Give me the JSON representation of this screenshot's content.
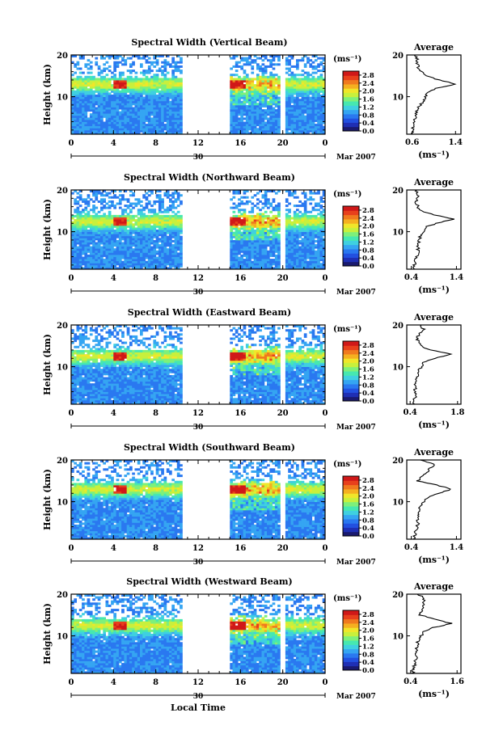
{
  "figure": {
    "xlabel": "Local Time",
    "date_label": "Mar 2007",
    "day_label": "30",
    "colorbar_unit": "(ms⁻¹)",
    "avg_title": "Average",
    "avg_xlabel": "(ms⁻¹)",
    "ylabel": "Height (km)"
  },
  "chart_data": [
    {
      "type": "heatmap",
      "title": "Spectral Width (Vertical Beam)",
      "xlabel": "Local Time",
      "ylabel": "Height (km)",
      "x_ticks": [
        "0",
        "4",
        "8",
        "12",
        "16",
        "20",
        "0"
      ],
      "xlim": [
        0,
        24
      ],
      "y_ticks": [
        "10",
        "20"
      ],
      "ylim": [
        1,
        20
      ],
      "colorbar": {
        "label": "(ms⁻¹)",
        "ticks": [
          "0.0",
          "0.4",
          "0.8",
          "1.2",
          "1.6",
          "2.0",
          "2.4",
          "2.8"
        ],
        "range": [
          0,
          3.0
        ]
      },
      "data_gaps": [
        [
          10.6,
          14.8
        ],
        [
          19.8,
          20.2
        ]
      ],
      "high_width_layer_km": 13,
      "average_profile": {
        "title": "Average",
        "xlabel": "(ms⁻¹)",
        "x_ticks": [
          "0.6",
          "1.4"
        ],
        "xlim": [
          0.5,
          1.5
        ],
        "heights": [
          1,
          3,
          5,
          7,
          9,
          11,
          12,
          13,
          14,
          15,
          17,
          19,
          20
        ],
        "values": [
          0.6,
          0.62,
          0.65,
          0.7,
          0.8,
          0.9,
          1.05,
          1.4,
          1.1,
          0.85,
          0.7,
          0.7,
          0.65
        ]
      }
    },
    {
      "type": "heatmap",
      "title": "Spectral Width (Northward Beam)",
      "xlabel": "Local Time",
      "ylabel": "Height (km)",
      "x_ticks": [
        "0",
        "4",
        "8",
        "12",
        "16",
        "20",
        "0"
      ],
      "xlim": [
        0,
        24
      ],
      "y_ticks": [
        "10",
        "20"
      ],
      "ylim": [
        1,
        20
      ],
      "colorbar": {
        "label": "(ms⁻¹)",
        "ticks": [
          "0.0",
          "0.4",
          "0.8",
          "1.2",
          "1.6",
          "2.0",
          "2.4",
          "2.8"
        ],
        "range": [
          0,
          3.0
        ]
      },
      "data_gaps": [
        [
          10.6,
          14.8
        ],
        [
          19.8,
          20.2
        ]
      ],
      "high_width_layer_km": 12.5,
      "average_profile": {
        "title": "Average",
        "xlabel": "(ms⁻¹)",
        "x_ticks": [
          "0.4",
          "1.4"
        ],
        "xlim": [
          0.3,
          1.5
        ],
        "heights": [
          1,
          3,
          5,
          7,
          9,
          11,
          12,
          13,
          14,
          15,
          17,
          19,
          20
        ],
        "values": [
          0.45,
          0.5,
          0.55,
          0.55,
          0.6,
          0.7,
          0.95,
          1.35,
          0.9,
          0.6,
          0.5,
          0.55,
          0.5
        ]
      }
    },
    {
      "type": "heatmap",
      "title": "Spectral Width (Eastward Beam)",
      "xlabel": "Local Time",
      "ylabel": "Height (km)",
      "x_ticks": [
        "0",
        "4",
        "8",
        "12",
        "16",
        "20",
        "0"
      ],
      "xlim": [
        0,
        24
      ],
      "y_ticks": [
        "10",
        "20"
      ],
      "ylim": [
        1,
        20
      ],
      "colorbar": {
        "label": "(ms⁻¹)",
        "ticks": [
          "0.0",
          "0.4",
          "0.8",
          "1.2",
          "1.6",
          "2.0",
          "2.4",
          "2.8"
        ],
        "range": [
          0,
          3.0
        ]
      },
      "data_gaps": [
        [
          10.6,
          14.8
        ],
        [
          19.8,
          20.2
        ]
      ],
      "high_width_layer_km": 12.5,
      "average_profile": {
        "title": "Average",
        "xlabel": "(ms⁻¹)",
        "x_ticks": [
          "0.4",
          "1.8"
        ],
        "xlim": [
          0.3,
          1.9
        ],
        "heights": [
          1,
          3,
          5,
          7,
          9,
          11,
          12,
          13,
          14,
          15,
          17,
          19,
          20
        ],
        "values": [
          0.5,
          0.55,
          0.55,
          0.6,
          0.65,
          0.8,
          1.1,
          1.6,
          1.0,
          0.7,
          0.6,
          0.8,
          0.7
        ]
      }
    },
    {
      "type": "heatmap",
      "title": "Spectral Width (Southward Beam)",
      "xlabel": "Local Time",
      "ylabel": "Height (km)",
      "x_ticks": [
        "0",
        "4",
        "8",
        "12",
        "16",
        "20",
        "0"
      ],
      "xlim": [
        0,
        24
      ],
      "y_ticks": [
        "10",
        "20"
      ],
      "ylim": [
        1,
        20
      ],
      "colorbar": {
        "label": "(ms⁻¹)",
        "ticks": [
          "0.0",
          "0.4",
          "0.8",
          "1.2",
          "1.6",
          "2.0",
          "2.4",
          "2.8"
        ],
        "range": [
          0,
          3.0
        ]
      },
      "data_gaps": [
        [
          10.6,
          14.8
        ],
        [
          19.8,
          20.2
        ]
      ],
      "high_width_layer_km": 13,
      "average_profile": {
        "title": "Average",
        "xlabel": "(ms⁻¹)",
        "x_ticks": [
          "0.4",
          "1.4"
        ],
        "xlim": [
          0.3,
          1.5
        ],
        "heights": [
          1,
          3,
          5,
          7,
          9,
          11,
          12,
          13,
          14,
          15,
          17,
          19,
          20
        ],
        "values": [
          0.45,
          0.5,
          0.55,
          0.55,
          0.6,
          0.75,
          1.0,
          1.3,
          0.95,
          0.55,
          0.75,
          0.9,
          0.6
        ]
      }
    },
    {
      "type": "heatmap",
      "title": "Spectral Width (Westward Beam)",
      "xlabel": "Local Time",
      "ylabel": "Height (km)",
      "x_ticks": [
        "0",
        "4",
        "8",
        "12",
        "16",
        "20",
        "0"
      ],
      "xlim": [
        0,
        24
      ],
      "y_ticks": [
        "10",
        "20"
      ],
      "ylim": [
        1,
        20
      ],
      "colorbar": {
        "label": "(ms⁻¹)",
        "ticks": [
          "0.0",
          "0.4",
          "0.8",
          "1.2",
          "1.6",
          "2.0",
          "2.4",
          "2.8"
        ],
        "range": [
          0,
          3.0
        ]
      },
      "data_gaps": [
        [
          10.6,
          14.8
        ],
        [
          19.8,
          20.2
        ]
      ],
      "high_width_layer_km": 12.5,
      "average_profile": {
        "title": "Average",
        "xlabel": "(ms⁻¹)",
        "x_ticks": [
          "0.4",
          "1.6"
        ],
        "xlim": [
          0.3,
          1.7
        ],
        "heights": [
          1,
          3,
          5,
          7,
          9,
          11,
          12,
          13,
          14,
          15,
          17,
          19,
          20
        ],
        "values": [
          0.45,
          0.5,
          0.55,
          0.55,
          0.6,
          0.75,
          1.0,
          1.45,
          1.0,
          0.65,
          0.7,
          0.75,
          0.6
        ]
      }
    }
  ]
}
